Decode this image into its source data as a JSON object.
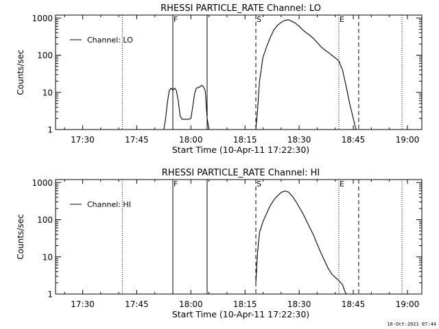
{
  "footer": {
    "timestamp": "16-Oct-2021 07:44"
  },
  "chart_data": [
    {
      "type": "line",
      "title": "RHESSI PARTICLE_RATE Channel: LO",
      "xlabel": "Start Time (10-Apr-11 17:22:30)",
      "ylabel": "Counts/sec",
      "yscale": "log",
      "xlim": [
        "17:22:30",
        "19:04:00"
      ],
      "ylim": [
        1,
        1200
      ],
      "xticks": [
        "17:30",
        "17:45",
        "18:00",
        "18:15",
        "18:30",
        "18:45",
        "19:00"
      ],
      "yticks": [
        "1",
        "10",
        "100",
        "1000"
      ],
      "legend": {
        "position": "upper-left",
        "label": "Channel: LO"
      },
      "markers": [
        {
          "time": "17:41:00",
          "style": "dotted",
          "label": ""
        },
        {
          "time": "17:55:00",
          "style": "solid",
          "label": "F"
        },
        {
          "time": "18:04:30",
          "style": "solid",
          "label": ""
        },
        {
          "time": "18:18:00",
          "style": "dashed",
          "label": "S"
        },
        {
          "time": "18:41:00",
          "style": "dotted",
          "label": "E"
        },
        {
          "time": "18:46:30",
          "style": "dashed",
          "label": ""
        },
        {
          "time": "18:58:30",
          "style": "dotted",
          "label": ""
        }
      ],
      "series": [
        {
          "name": "Channel: LO",
          "segments": [
            {
              "x": [
                "17:52:30",
                "17:53:00",
                "17:53:30",
                "17:54:00",
                "17:54:30",
                "17:55:00",
                "17:55:30",
                "17:56:00",
                "17:56:30",
                "17:57:00",
                "17:57:30",
                "17:58:00",
                "17:58:30",
                "17:59:00",
                "17:59:30",
                "18:00:00",
                "18:00:30",
                "18:01:00",
                "18:01:30",
                "18:02:00",
                "18:02:30",
                "18:03:00",
                "18:03:30",
                "18:04:00",
                "18:04:30",
                "18:05:00"
              ],
              "y": [
                1.0,
                2.0,
                5.5,
                11.0,
                13.0,
                11.5,
                13.0,
                11.0,
                6.0,
                2.4,
                1.9,
                1.9,
                1.9,
                1.9,
                1.9,
                2.0,
                4.0,
                9.0,
                13.0,
                13.5,
                14.0,
                15.5,
                14.0,
                11.0,
                2.0,
                1.0
              ]
            },
            {
              "x": [
                "18:18:00",
                "18:18:30",
                "18:19:00",
                "18:20:00",
                "18:21:00",
                "18:22:00",
                "18:23:00",
                "18:24:00",
                "18:25:00",
                "18:26:00",
                "18:27:00",
                "18:28:00",
                "18:29:00",
                "18:30:00",
                "18:31:00",
                "18:32:00",
                "18:33:00",
                "18:34:00",
                "18:35:00",
                "18:36:00",
                "18:37:00",
                "18:38:00",
                "18:39:00",
                "18:40:00",
                "18:41:00",
                "18:42:00",
                "18:43:00",
                "18:44:00",
                "18:45:00",
                "18:45:45"
              ],
              "y": [
                1.0,
                3.5,
                20,
                90,
                170,
                300,
                480,
                640,
                760,
                860,
                900,
                820,
                720,
                600,
                480,
                400,
                340,
                280,
                220,
                170,
                140,
                120,
                100,
                85,
                70,
                40,
                15,
                5,
                2,
                1.0
              ]
            }
          ]
        }
      ]
    },
    {
      "type": "line",
      "title": "RHESSI PARTICLE_RATE Channel: HI",
      "xlabel": "Start Time (10-Apr-11 17:22:30)",
      "ylabel": "Counts/sec",
      "yscale": "log",
      "xlim": [
        "17:22:30",
        "19:04:00"
      ],
      "ylim": [
        1,
        1200
      ],
      "xticks": [
        "17:30",
        "17:45",
        "18:00",
        "18:15",
        "18:30",
        "18:45",
        "19:00"
      ],
      "yticks": [
        "1",
        "10",
        "100",
        "1000"
      ],
      "legend": {
        "position": "upper-left",
        "label": "Channel: HI"
      },
      "markers": [
        {
          "time": "17:41:00",
          "style": "dotted",
          "label": ""
        },
        {
          "time": "17:55:00",
          "style": "solid",
          "label": "F"
        },
        {
          "time": "18:04:30",
          "style": "solid",
          "label": ""
        },
        {
          "time": "18:18:00",
          "style": "dashed",
          "label": "S"
        },
        {
          "time": "18:41:00",
          "style": "dotted",
          "label": "E"
        },
        {
          "time": "18:46:30",
          "style": "dashed",
          "label": ""
        },
        {
          "time": "18:58:30",
          "style": "dotted",
          "label": ""
        }
      ],
      "series": [
        {
          "name": "Channel: HI",
          "segments": [
            {
              "x": [
                "18:18:00",
                "18:18:30",
                "18:19:00",
                "18:20:00",
                "18:21:00",
                "18:22:00",
                "18:23:00",
                "18:24:00",
                "18:25:00",
                "18:26:00",
                "18:27:00",
                "18:28:00",
                "18:29:00",
                "18:30:00",
                "18:31:00",
                "18:32:00",
                "18:33:00",
                "18:34:00",
                "18:35:00",
                "18:36:00",
                "18:37:00",
                "18:38:00",
                "18:39:00",
                "18:40:00",
                "18:41:00",
                "18:42:00",
                "18:42:30",
                "18:43:00"
              ],
              "y": [
                2.0,
                14,
                45,
                90,
                150,
                240,
                340,
                440,
                540,
                590,
                560,
                440,
                320,
                220,
                150,
                95,
                60,
                38,
                22,
                13,
                8,
                5,
                3.5,
                2.8,
                2.3,
                1.8,
                1.3,
                1.0
              ]
            }
          ]
        }
      ]
    }
  ]
}
